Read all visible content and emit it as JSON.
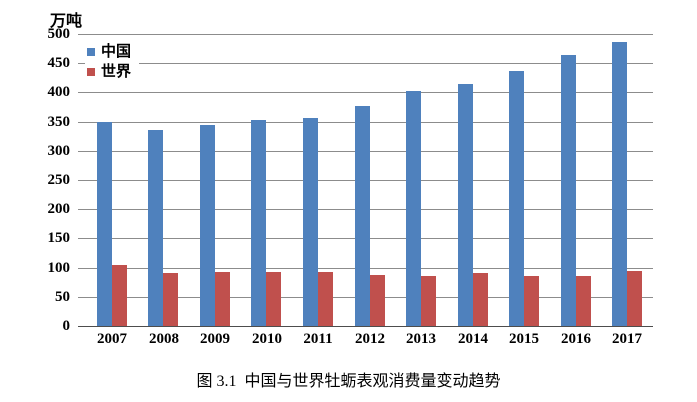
{
  "figure": {
    "caption": "图 3.1  中国与世界牡蛎表观消费量变动趋势"
  },
  "chart_data": {
    "type": "bar",
    "title": "",
    "unit_label": "万吨",
    "xlabel": "",
    "ylabel": "万吨",
    "categories": [
      "2007",
      "2008",
      "2009",
      "2010",
      "2011",
      "2012",
      "2013",
      "2014",
      "2015",
      "2016",
      "2017"
    ],
    "series": [
      {
        "id": "china",
        "name": "中国",
        "color": "#4F81BD",
        "values": [
          350,
          335,
          345,
          353,
          357,
          377,
          403,
          415,
          437,
          464,
          487
        ]
      },
      {
        "id": "world",
        "name": "世界",
        "color": "#C0504D",
        "values": [
          105,
          90,
          92,
          92,
          92,
          87,
          85,
          91,
          86,
          85,
          95
        ]
      }
    ],
    "ylim": [
      0,
      500
    ],
    "ytick_step": 50,
    "grid": true,
    "legend_position": "top-left-inside",
    "colors": {
      "gridline": "#8c8c8c",
      "axis": "#4d4d4d",
      "background": "#ffffff",
      "text": "#000000"
    }
  }
}
